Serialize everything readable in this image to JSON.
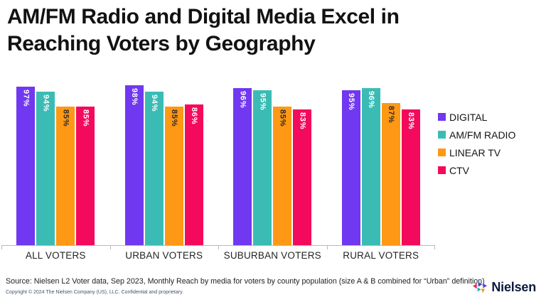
{
  "title": {
    "line1": "AM/FM Radio and Digital Media Excel in",
    "line2": "Reaching Voters by Geography"
  },
  "chart_data": {
    "type": "bar",
    "title": "AM/FM Radio and Digital Media Excel in Reaching Voters by Geography",
    "categories": [
      "ALL VOTERS",
      "URBAN VOTERS",
      "SUBURBAN VOTERS",
      "RURAL VOTERS"
    ],
    "series": [
      {
        "name": "DIGITAL",
        "color": "#7038f0",
        "label_color": "#ffffff",
        "values": [
          97,
          98,
          96,
          95
        ]
      },
      {
        "name": "AM/FM RADIO",
        "color": "#3abcb5",
        "label_color": "#ffffff",
        "values": [
          94,
          94,
          95,
          96
        ]
      },
      {
        "name": "LINEAR TV",
        "color": "#fe9815",
        "label_color": "#2b2b2b",
        "values": [
          85,
          85,
          85,
          87
        ]
      },
      {
        "name": "CTV",
        "color": "#f40a5c",
        "label_color": "#ffffff",
        "values": [
          85,
          86,
          83,
          83
        ]
      }
    ],
    "value_suffix": "%",
    "ylim": [
      0,
      100
    ],
    "grid": false,
    "y_axis_visible": false,
    "legend_position": "right",
    "axis_color": "#b9b9b9"
  },
  "footer": {
    "source": "Source: Nielsen L2 Voter data, Sep 2023, Monthly Reach by media for voters by county population (size A & B combined for “Urban” definition)",
    "copyright": "Copyright © 2024 The Nielsen Company (US), LLC. Confidential and proprietary."
  },
  "brand": {
    "logo_text": "Nielsen"
  }
}
